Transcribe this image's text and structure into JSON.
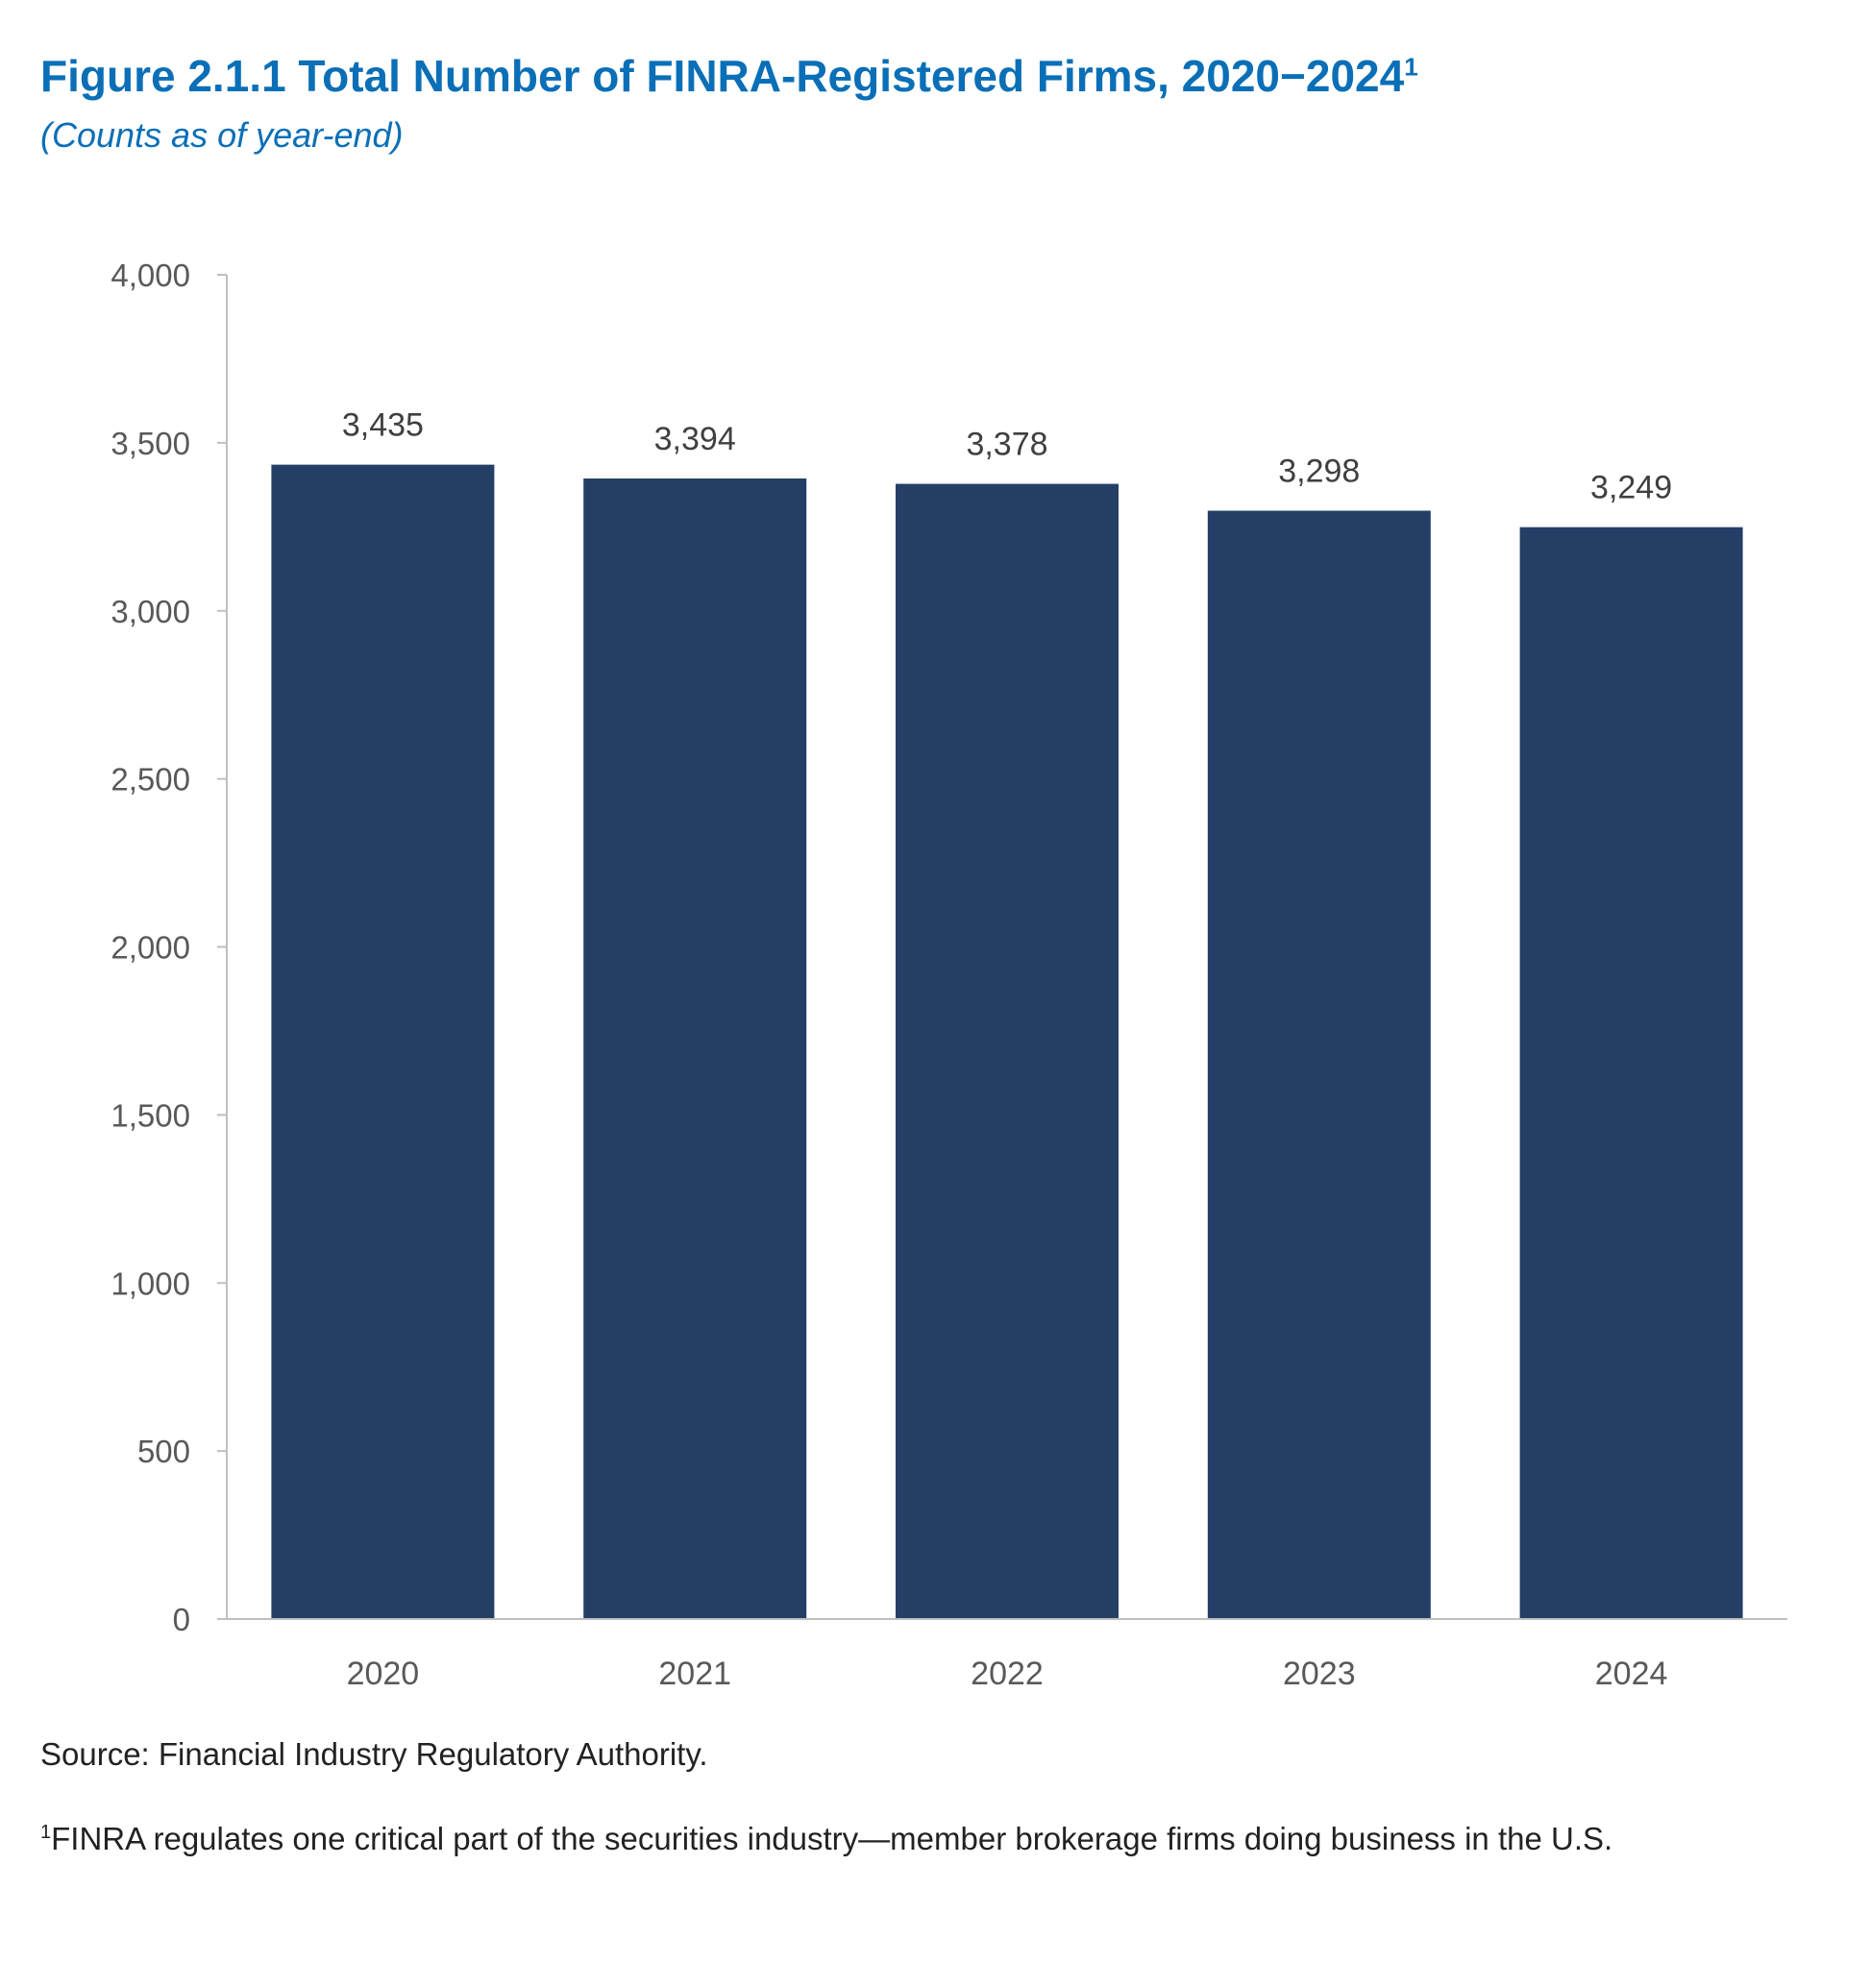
{
  "figure": {
    "title": "Figure 2.1.1 Total Number of FINRA-Registered Firms, 2020−2024",
    "title_footnote_marker": "1",
    "subtitle": "(Counts as of year-end)",
    "source": "Source: Financial Industry Regulatory Authority.",
    "footnote_marker": "1",
    "footnote_text": "FINRA regulates one critical part of the securities industry—member brokerage firms doing business in the U.S."
  },
  "colors": {
    "title": "#0a6fb7",
    "bar": "#243f66",
    "axis": "#bfbfbf",
    "tick_text": "#595959",
    "label_text": "#404040"
  },
  "chart_data": {
    "type": "bar",
    "categories": [
      "2020",
      "2021",
      "2022",
      "2023",
      "2024"
    ],
    "values": [
      3435,
      3394,
      3378,
      3298,
      3249
    ],
    "data_labels": [
      "3,435",
      "3,394",
      "3,378",
      "3,298",
      "3,249"
    ],
    "title": "Figure 2.1.1 Total Number of FINRA-Registered Firms, 2020−2024",
    "xlabel": "",
    "ylabel": "",
    "ylim": [
      0,
      4000
    ],
    "yticks": [
      0,
      500,
      1000,
      1500,
      2000,
      2500,
      3000,
      3500,
      4000
    ],
    "ytick_labels": [
      "0",
      "500",
      "1,000",
      "1,500",
      "2,000",
      "2,500",
      "3,000",
      "3,500",
      "4,000"
    ],
    "grid": false,
    "legend": "none"
  }
}
